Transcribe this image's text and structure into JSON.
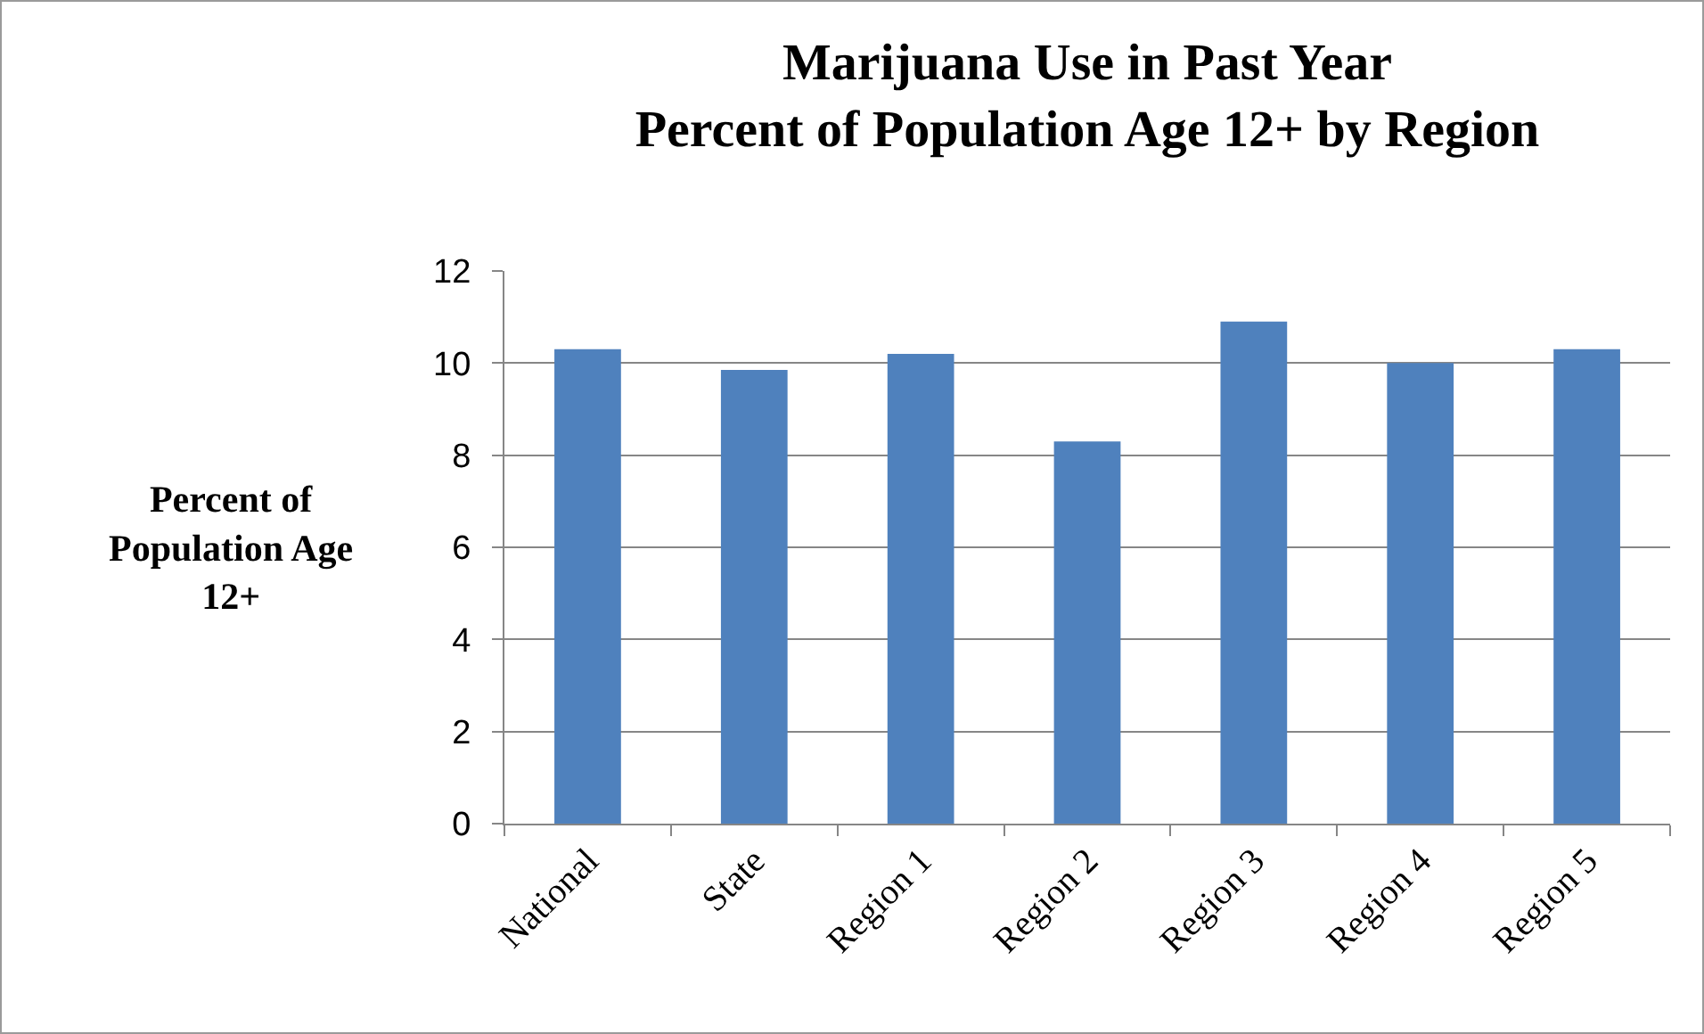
{
  "chart_data": {
    "type": "bar",
    "title": "Marijuana Use in Past Year\nPercent of Population Age 12+ by Region",
    "ylabel": "Percent of Population Age 12+",
    "categories": [
      "National",
      "State",
      "Region 1",
      "Region 2",
      "Region 3",
      "Region 4",
      "Region 5"
    ],
    "values": [
      10.3,
      9.85,
      10.2,
      8.3,
      10.9,
      10.0,
      10.3
    ],
    "color": "#4f81bd",
    "ylim": [
      0,
      12
    ],
    "yticks": [
      0,
      2,
      4,
      6,
      8,
      10,
      12
    ],
    "grid": "y"
  }
}
